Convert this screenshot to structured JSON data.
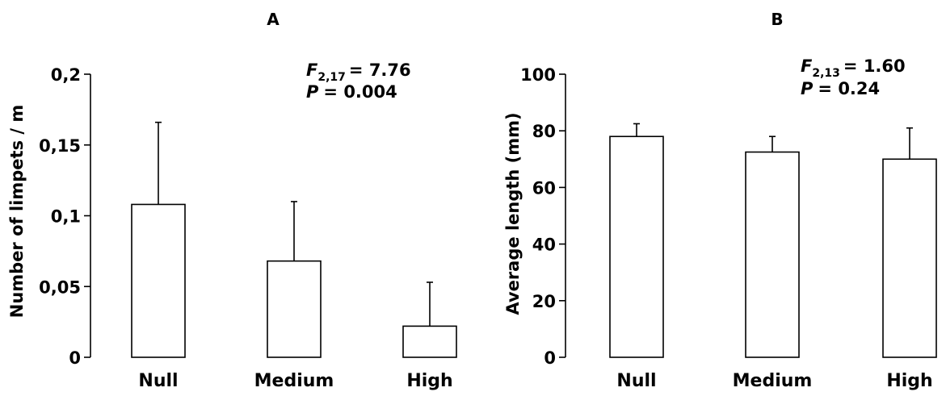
{
  "chart_data": [
    {
      "type": "bar",
      "panel_label": "A",
      "categories": [
        "Null",
        "Medium",
        "High"
      ],
      "values": [
        0.108,
        0.068,
        0.022
      ],
      "errors": [
        0.058,
        0.042,
        0.031
      ],
      "ylabel": "Number of limpets / m",
      "ylim": [
        0,
        0.2
      ],
      "yticks": [
        0,
        0.05,
        0.1,
        0.15,
        0.2
      ],
      "ytick_labels": [
        "0",
        "0,05",
        "0,1",
        "0,15",
        "0,2"
      ],
      "stats": {
        "f_symbol": "F",
        "f_subscript": "2,17",
        "f_value": "= 7.76",
        "p_symbol": "P",
        "p_value": "= 0.004"
      }
    },
    {
      "type": "bar",
      "panel_label": "B",
      "categories": [
        "Null",
        "Medium",
        "High"
      ],
      "values": [
        78,
        72.5,
        70
      ],
      "errors": [
        4.5,
        5.5,
        11
      ],
      "ylabel": "Average length (mm)",
      "ylim": [
        0,
        100
      ],
      "yticks": [
        0,
        20,
        40,
        60,
        80,
        100
      ],
      "ytick_labels": [
        "0",
        "20",
        "40",
        "60",
        "80",
        "100"
      ],
      "stats": {
        "f_symbol": "F",
        "f_subscript": "2,13",
        "f_value": "= 1.60",
        "p_symbol": "P",
        "p_value": "= 0.24"
      }
    }
  ]
}
